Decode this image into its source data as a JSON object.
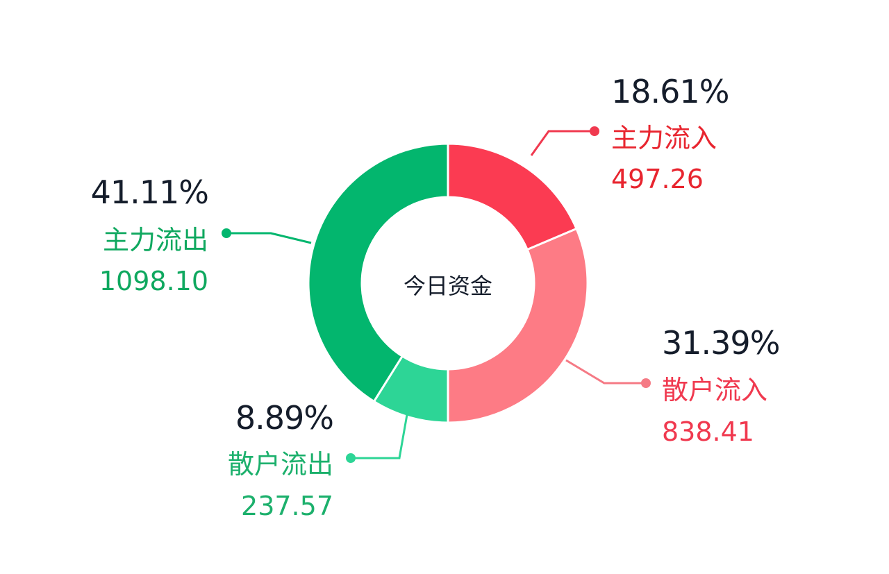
{
  "chart_data": {
    "type": "pie",
    "variant": "donut",
    "center_label": "今日资金",
    "slices": [
      {
        "name": "主力流入",
        "value": 497.26,
        "percent": "18.61%",
        "value_text": "497.26",
        "color": "#fb3b52",
        "label_color": "#e8252f",
        "line_color": "#f0394f"
      },
      {
        "name": "散户流入",
        "value": 838.41,
        "percent": "31.39%",
        "value_text": "838.41",
        "color": "#fd7b85",
        "label_color": "#f0394f",
        "line_color": "#f57a85"
      },
      {
        "name": "散户流出",
        "value": 237.57,
        "percent": "8.89%",
        "value_text": "237.57",
        "color": "#2dd596",
        "label_color": "#1cb06c",
        "line_color": "#2dd596"
      },
      {
        "name": "主力流出",
        "value": 1098.1,
        "percent": "41.11%",
        "value_text": "1098.10",
        "color": "#03b66e",
        "label_color": "#0fa85f",
        "line_color": "#03b66e"
      }
    ]
  }
}
